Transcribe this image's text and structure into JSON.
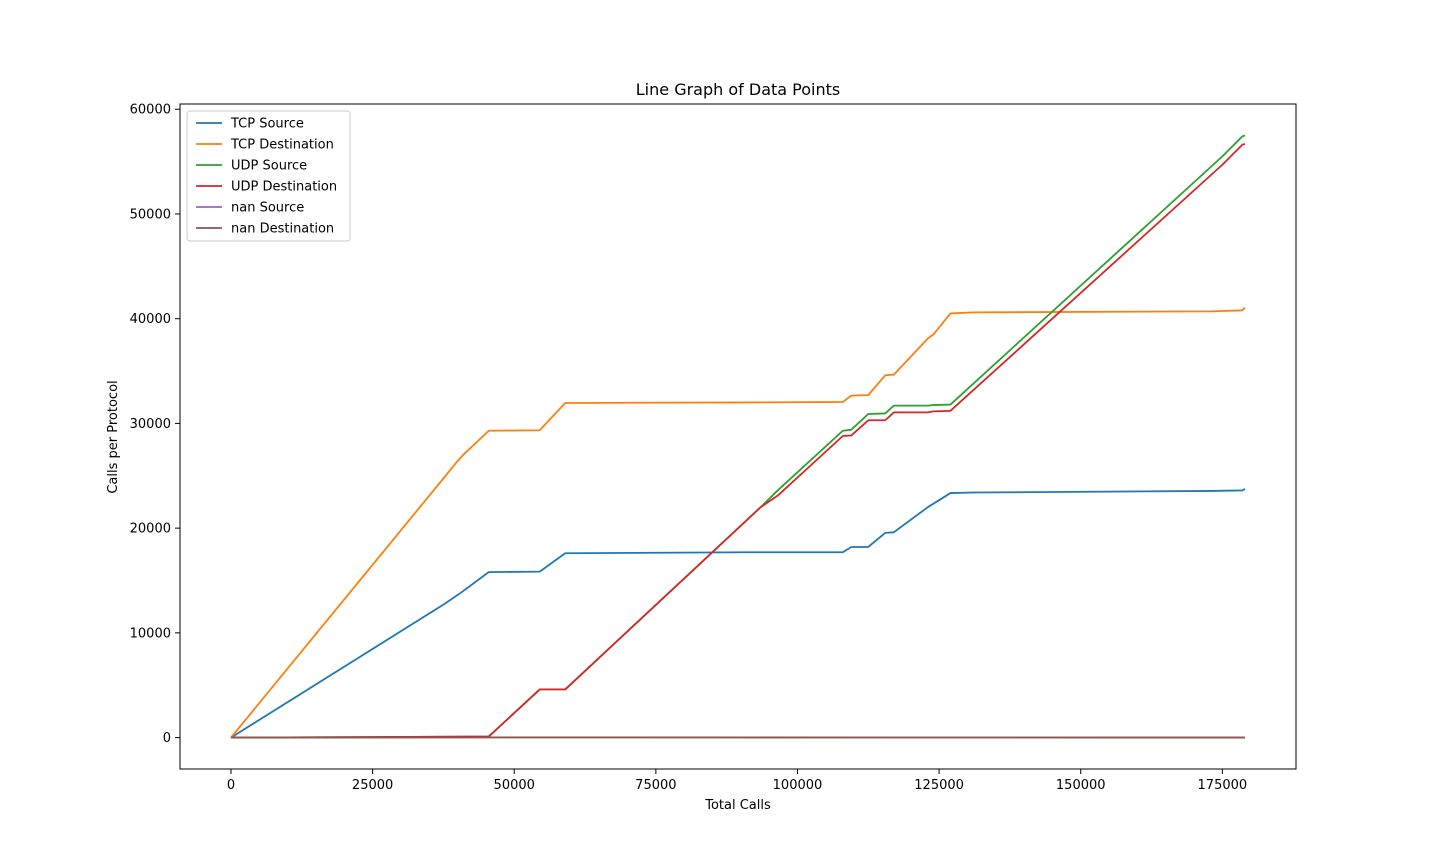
{
  "chart_data": {
    "type": "line",
    "title": "Line Graph of Data Points",
    "xlabel": "Total Calls",
    "ylabel": "Calls per Protocol",
    "xlim": [
      -9000,
      188000
    ],
    "ylim": [
      -3000,
      60500
    ],
    "xticks": [
      0,
      25000,
      50000,
      75000,
      100000,
      125000,
      150000,
      175000
    ],
    "yticks": [
      0,
      10000,
      20000,
      30000,
      40000,
      50000,
      60000
    ],
    "grid": false,
    "legend": "top-left",
    "series": [
      {
        "name": "TCP Source",
        "color": "#1f77b4",
        "points": [
          [
            0,
            0
          ],
          [
            37500,
            12700
          ],
          [
            40500,
            13800
          ],
          [
            45500,
            15800
          ],
          [
            54500,
            15850
          ],
          [
            59000,
            17600
          ],
          [
            91000,
            17700
          ],
          [
            108000,
            17700
          ],
          [
            109500,
            18200
          ],
          [
            112500,
            18200
          ],
          [
            115500,
            19550
          ],
          [
            117000,
            19600
          ],
          [
            123000,
            22000
          ],
          [
            127000,
            23350
          ],
          [
            131000,
            23400
          ],
          [
            173000,
            23550
          ],
          [
            178500,
            23600
          ],
          [
            179000,
            23750
          ]
        ]
      },
      {
        "name": "TCP Destination",
        "color": "#ff7f0e",
        "points": [
          [
            0,
            0
          ],
          [
            40000,
            26400
          ],
          [
            41000,
            27000
          ],
          [
            45500,
            29300
          ],
          [
            54500,
            29350
          ],
          [
            59000,
            31950
          ],
          [
            91000,
            32000
          ],
          [
            108000,
            32050
          ],
          [
            109500,
            32650
          ],
          [
            112500,
            32700
          ],
          [
            115500,
            34600
          ],
          [
            117000,
            34650
          ],
          [
            123000,
            38100
          ],
          [
            124000,
            38500
          ],
          [
            127000,
            40500
          ],
          [
            131000,
            40600
          ],
          [
            173000,
            40700
          ],
          [
            178500,
            40800
          ],
          [
            179000,
            41050
          ]
        ]
      },
      {
        "name": "UDP Source",
        "color": "#2ca02c",
        "points": [
          [
            0,
            0
          ],
          [
            45500,
            100
          ],
          [
            54500,
            4600
          ],
          [
            59000,
            4600
          ],
          [
            93500,
            22000
          ],
          [
            96500,
            23600
          ],
          [
            108000,
            29300
          ],
          [
            109500,
            29400
          ],
          [
            112500,
            30900
          ],
          [
            115500,
            30950
          ],
          [
            117000,
            31700
          ],
          [
            123000,
            31700
          ],
          [
            124000,
            31750
          ],
          [
            127000,
            31800
          ],
          [
            175000,
            55500
          ],
          [
            178500,
            57400
          ],
          [
            179000,
            57500
          ]
        ]
      },
      {
        "name": "UDP Destination",
        "color": "#d62728",
        "points": [
          [
            0,
            0
          ],
          [
            45500,
            100
          ],
          [
            54500,
            4600
          ],
          [
            59000,
            4600
          ],
          [
            93500,
            22000
          ],
          [
            96500,
            23100
          ],
          [
            108000,
            28800
          ],
          [
            109500,
            28850
          ],
          [
            112500,
            30300
          ],
          [
            115500,
            30300
          ],
          [
            117000,
            31050
          ],
          [
            123000,
            31050
          ],
          [
            124000,
            31150
          ],
          [
            127000,
            31200
          ],
          [
            175000,
            54700
          ],
          [
            178500,
            56600
          ],
          [
            179000,
            56700
          ]
        ]
      },
      {
        "name": "nan Source",
        "color": "#9467bd",
        "points": [
          [
            0,
            0
          ],
          [
            45500,
            20
          ],
          [
            179000,
            0
          ]
        ]
      },
      {
        "name": "nan Destination",
        "color": "#8c564b",
        "points": [
          [
            0,
            0
          ],
          [
            45500,
            20
          ],
          [
            179000,
            0
          ]
        ]
      }
    ]
  }
}
